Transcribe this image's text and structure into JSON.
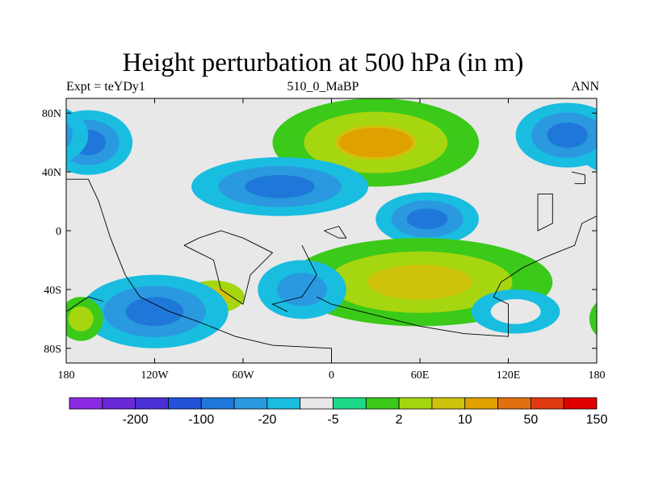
{
  "chart_data": {
    "type": "heatmap",
    "title": "Height perturbation at 500 hPa (in m)",
    "subtitle_left": "Expt = teYDy1",
    "subtitle_center": "510_0_MaBP",
    "subtitle_right": "ANN",
    "x_range": [
      -180,
      180
    ],
    "y_range": [
      -90,
      90
    ],
    "x_ticks": [
      {
        "value": -180,
        "label": "180"
      },
      {
        "value": -120,
        "label": "120W"
      },
      {
        "value": -60,
        "label": "60W"
      },
      {
        "value": 0,
        "label": "0"
      },
      {
        "value": 60,
        "label": "60E"
      },
      {
        "value": 120,
        "label": "120E"
      },
      {
        "value": 180,
        "label": "180"
      }
    ],
    "y_ticks": [
      {
        "value": 80,
        "label": "80N"
      },
      {
        "value": 40,
        "label": "40N"
      },
      {
        "value": 0,
        "label": "0"
      },
      {
        "value": -40,
        "label": "40S"
      },
      {
        "value": -80,
        "label": "80S"
      }
    ],
    "colorbar": {
      "colors": [
        "#8a2be2",
        "#6a28d8",
        "#4b2fd6",
        "#2352d8",
        "#1f78d9",
        "#2a99e0",
        "#19bde0",
        "#e8e8e8",
        "#1fd98a",
        "#3bc91a",
        "#a6d60f",
        "#cfc20a",
        "#e0a000",
        "#e07010",
        "#e03a10",
        "#e00000"
      ],
      "labels": [
        {
          "after_index": 1,
          "text": "-200"
        },
        {
          "after_index": 3,
          "text": "-100"
        },
        {
          "after_index": 5,
          "text": "-20"
        },
        {
          "after_index": 7,
          "text": "-5"
        },
        {
          "after_index": 9,
          "text": "2"
        },
        {
          "after_index": 11,
          "text": "10"
        },
        {
          "after_index": 13,
          "text": "50"
        },
        {
          "after_index": 15,
          "text": "150"
        }
      ]
    },
    "field": {
      "description_free": true,
      "background_class": 7,
      "blobs": [
        {
          "lon": -165,
          "lat": 60,
          "rx": 30,
          "ry": 22,
          "levels": [
            6,
            5,
            4
          ]
        },
        {
          "lon": 160,
          "lat": 65,
          "rx": 35,
          "ry": 22,
          "levels": [
            6,
            5,
            4
          ]
        },
        {
          "lon": 30,
          "lat": 60,
          "rx": 70,
          "ry": 30,
          "levels": [
            9,
            10,
            11
          ]
        },
        {
          "lon": 30,
          "lat": 60,
          "rx": 25,
          "ry": 10,
          "levels": [
            12
          ]
        },
        {
          "lon": -35,
          "lat": 30,
          "rx": 60,
          "ry": 20,
          "levels": [
            6,
            5,
            4
          ]
        },
        {
          "lon": 65,
          "lat": 8,
          "rx": 35,
          "ry": 18,
          "levels": [
            6,
            5,
            4
          ]
        },
        {
          "lon": 60,
          "lat": -35,
          "rx": 90,
          "ry": 30,
          "levels": [
            9,
            10,
            11
          ]
        },
        {
          "lon": -80,
          "lat": -45,
          "rx": 30,
          "ry": 16,
          "levels": [
            7,
            10,
            11
          ]
        },
        {
          "lon": -120,
          "lat": -55,
          "rx": 50,
          "ry": 25,
          "levels": [
            6,
            5,
            4
          ]
        },
        {
          "lon": -20,
          "lat": -40,
          "rx": 30,
          "ry": 20,
          "levels": [
            6,
            5
          ]
        },
        {
          "lon": 125,
          "lat": -55,
          "rx": 30,
          "ry": 15,
          "levels": [
            6,
            7
          ]
        },
        {
          "lon": -170,
          "lat": -60,
          "rx": 15,
          "ry": 15,
          "levels": [
            9,
            10
          ]
        }
      ]
    }
  }
}
